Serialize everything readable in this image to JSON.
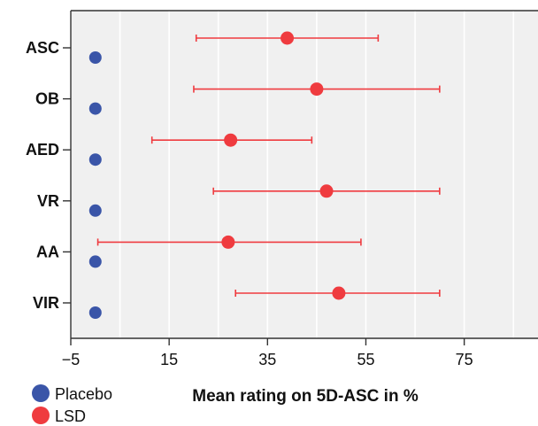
{
  "chart_data": {
    "type": "scatter",
    "orientation": "horizontal",
    "categories": [
      "ASC",
      "OB",
      "AED",
      "VR",
      "AA",
      "VIR"
    ],
    "xlabel": "Mean rating on 5D-ASC in %",
    "ylabel": "",
    "xlim": [
      -5,
      90
    ],
    "xticks": [
      "−5",
      "15",
      "35",
      "55",
      "75"
    ],
    "xtick_values": [
      -5,
      15,
      35,
      55,
      75
    ],
    "grid": true,
    "legend_position": "bottom-left",
    "series": [
      {
        "name": "Placebo",
        "color": "#3a55a8",
        "values": [
          0,
          0,
          0,
          0,
          0,
          0
        ]
      },
      {
        "name": "LSD",
        "color": "#ef3b3f",
        "values": [
          39,
          45,
          27.5,
          47,
          27,
          49.5
        ],
        "error_low": [
          20.5,
          20,
          11.5,
          24,
          0.5,
          28.5
        ],
        "error_high": [
          57.5,
          70,
          44,
          70,
          54,
          70
        ]
      }
    ]
  }
}
